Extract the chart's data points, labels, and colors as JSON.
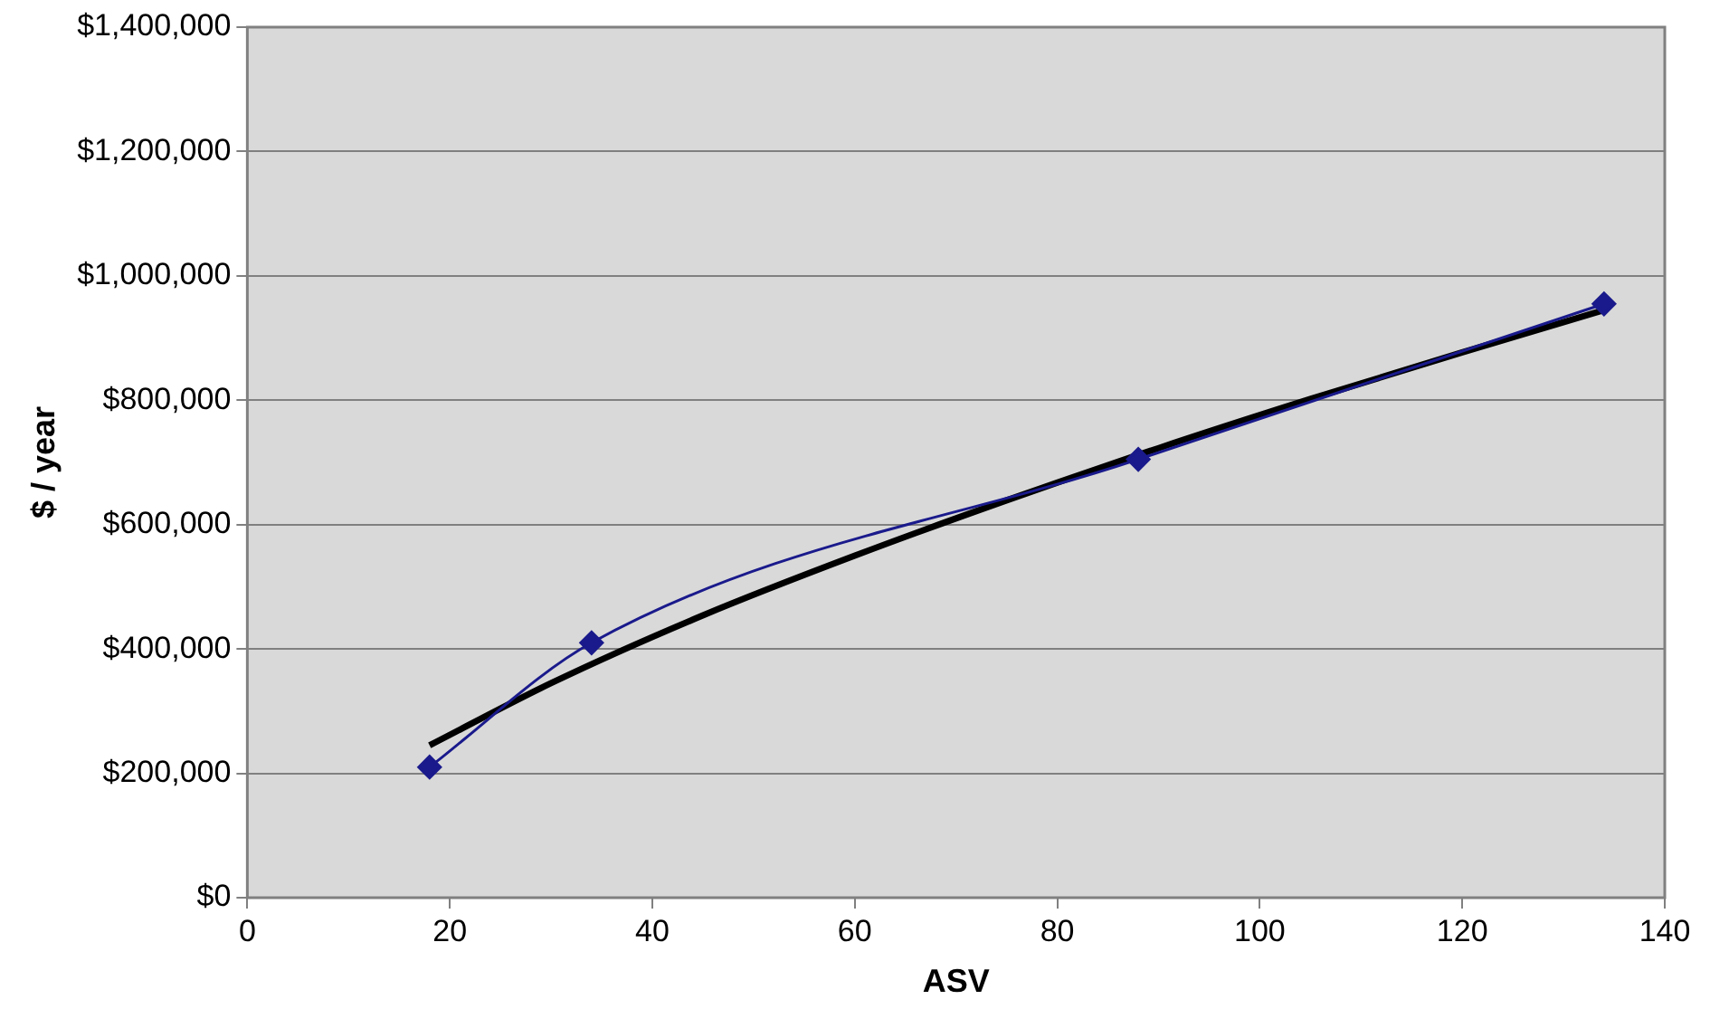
{
  "chart_data": {
    "type": "line",
    "xlabel": "ASV",
    "ylabel": "$ / year",
    "xlim": [
      0,
      140
    ],
    "xticks": [
      0,
      20,
      40,
      60,
      80,
      100,
      120,
      140
    ],
    "ylim": [
      0,
      1400000
    ],
    "yticks": [
      {
        "value": 0,
        "label": "$0"
      },
      {
        "value": 200000,
        "label": "$200,000"
      },
      {
        "value": 400000,
        "label": "$400,000"
      },
      {
        "value": 600000,
        "label": "$600,000"
      },
      {
        "value": 800000,
        "label": "$800,000"
      },
      {
        "value": 1000000,
        "label": "$1,000,000"
      },
      {
        "value": 1200000,
        "label": "$1,200,000"
      },
      {
        "value": 1400000,
        "label": "$1,400,000"
      }
    ],
    "grid": "y",
    "legend": false,
    "series": [
      {
        "color": "#1a1a8c",
        "marker": "diamond",
        "x": [
          18,
          34,
          88,
          134
        ],
        "values": [
          210000,
          410000,
          705000,
          955000
        ]
      },
      {
        "color": "#000000",
        "marker": "none",
        "x": [
          18,
          30,
          45,
          60,
          75,
          90,
          105,
          120,
          134
        ],
        "values": [
          245000,
          345000,
          454000,
          550000,
          639000,
          723000,
          802000,
          877000,
          945000
        ]
      }
    ]
  }
}
